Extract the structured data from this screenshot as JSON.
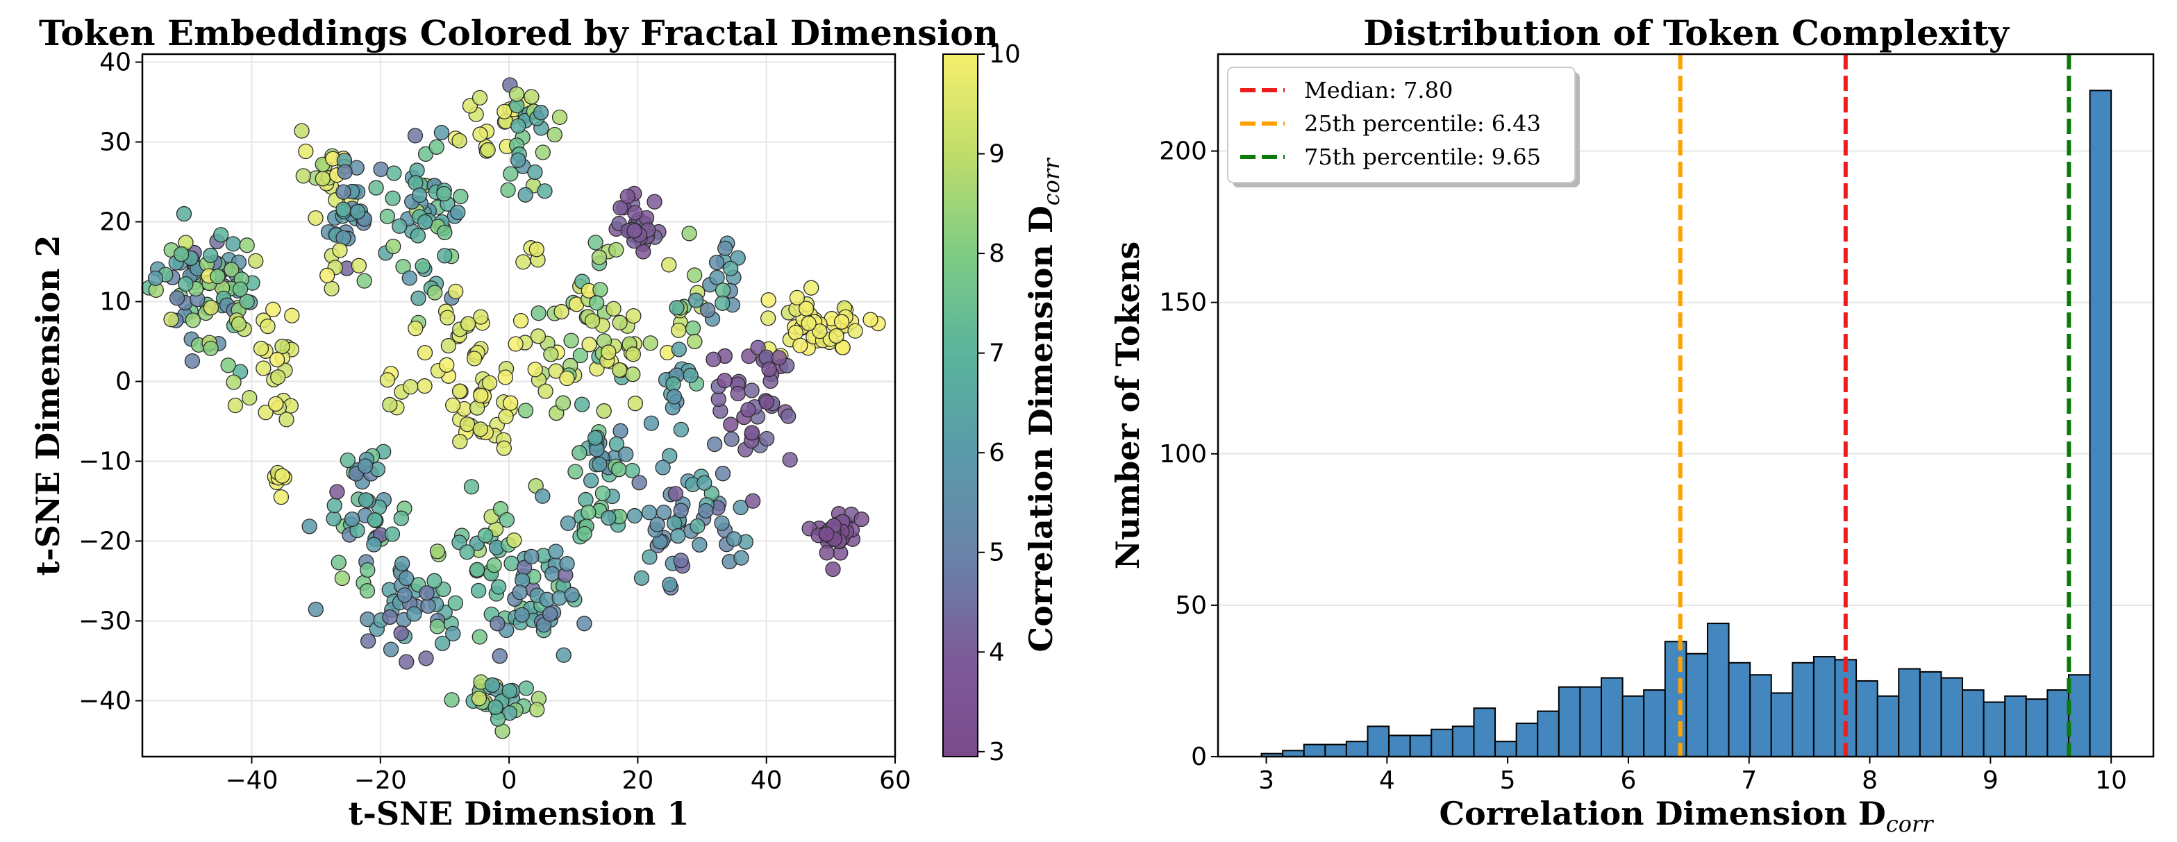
{
  "chart_data": [
    {
      "type": "scatter",
      "title": "Token Embeddings Colored by Fractal Dimension",
      "xlabel": "t-SNE Dimension 1",
      "ylabel": "t-SNE Dimension 2",
      "xlim": [
        -57,
        60
      ],
      "ylim": [
        -47,
        41
      ],
      "xticks": [
        -40,
        -20,
        0,
        20,
        40,
        60
      ],
      "yticks": [
        -40,
        -30,
        -20,
        -10,
        0,
        10,
        20,
        30,
        40
      ],
      "grid": true,
      "colormap": "viridis",
      "colorbar": {
        "label": "Correlation Dimension D",
        "label_subscript": "corr",
        "range": [
          2.95,
          10
        ],
        "ticks": [
          3,
          4,
          5,
          6,
          7,
          8,
          9,
          10
        ]
      },
      "clusters": [
        {
          "cx": -48,
          "cy": 12,
          "sx": 5,
          "sy": 4.5,
          "n": 70,
          "val": 6.5,
          "vs": 1.8
        },
        {
          "cx": -43,
          "cy": 8,
          "sx": 3,
          "sy": 6,
          "n": 20,
          "val": 8.5,
          "vs": 1.2
        },
        {
          "cx": -36,
          "cy": 2,
          "sx": 2.5,
          "sy": 6,
          "n": 22,
          "val": 9.6,
          "vs": 0.5
        },
        {
          "cx": -36,
          "cy": -12,
          "sx": 0.8,
          "sy": 1.5,
          "n": 7,
          "val": 9.8,
          "vs": 0.2
        },
        {
          "cx": -28,
          "cy": 26,
          "sx": 2.5,
          "sy": 3,
          "n": 18,
          "val": 9.3,
          "vs": 0.8
        },
        {
          "cx": -24,
          "cy": 21,
          "sx": 2.5,
          "sy": 4,
          "n": 28,
          "val": 5.8,
          "vs": 0.8
        },
        {
          "cx": -26,
          "cy": 14,
          "sx": 2,
          "sy": 2,
          "n": 6,
          "val": 9.4,
          "vs": 0.5
        },
        {
          "cx": -13,
          "cy": 20,
          "sx": 3.5,
          "sy": 6,
          "n": 55,
          "val": 6.8,
          "vs": 1.2
        },
        {
          "cx": -8,
          "cy": 7,
          "sx": 4,
          "sy": 7,
          "n": 25,
          "val": 9.6,
          "vs": 0.5
        },
        {
          "cx": -3,
          "cy": 31,
          "sx": 4,
          "sy": 3,
          "n": 18,
          "val": 9.5,
          "vs": 0.5
        },
        {
          "cx": 2,
          "cy": 30,
          "sx": 3,
          "sy": 5,
          "n": 26,
          "val": 7.3,
          "vs": 1.5
        },
        {
          "cx": 4,
          "cy": 17,
          "sx": 1,
          "sy": 1,
          "n": 4,
          "val": 9.6,
          "vs": 0.3
        },
        {
          "cx": -4,
          "cy": -3,
          "sx": 4,
          "sy": 3,
          "n": 28,
          "val": 9.6,
          "vs": 0.4
        },
        {
          "cx": 6,
          "cy": 3,
          "sx": 4,
          "sy": 5,
          "n": 22,
          "val": 9.2,
          "vs": 0.8
        },
        {
          "cx": 12,
          "cy": 8,
          "sx": 4,
          "sy": 8,
          "n": 32,
          "val": 8.3,
          "vs": 1.3
        },
        {
          "cx": 20,
          "cy": 19,
          "sx": 2,
          "sy": 3,
          "n": 30,
          "val": 3.8,
          "vs": 0.5
        },
        {
          "cx": 18,
          "cy": 5,
          "sx": 4,
          "sy": 3,
          "n": 16,
          "val": 9.2,
          "vs": 0.6
        },
        {
          "cx": 28,
          "cy": 10,
          "sx": 3,
          "sy": 5,
          "n": 14,
          "val": 8.8,
          "vs": 1.0
        },
        {
          "cx": 25,
          "cy": 0,
          "sx": 3,
          "sy": 4,
          "n": 16,
          "val": 6.2,
          "vs": 1.0
        },
        {
          "cx": 33,
          "cy": 13,
          "sx": 2,
          "sy": 3,
          "n": 16,
          "val": 6.0,
          "vs": 0.8
        },
        {
          "cx": 48,
          "cy": 7,
          "sx": 5,
          "sy": 2.5,
          "n": 48,
          "val": 9.8,
          "vs": 0.3
        },
        {
          "cx": 38,
          "cy": -2,
          "sx": 3.5,
          "sy": 4.5,
          "n": 40,
          "val": 3.9,
          "vs": 0.5
        },
        {
          "cx": 14,
          "cy": -9,
          "sx": 3,
          "sy": 3,
          "n": 24,
          "val": 6.3,
          "vs": 1.2
        },
        {
          "cx": 28,
          "cy": -17,
          "sx": 6,
          "sy": 5,
          "n": 50,
          "val": 5.6,
          "vs": 1.0
        },
        {
          "cx": 51,
          "cy": -19,
          "sx": 1.8,
          "sy": 1.8,
          "n": 36,
          "val": 3.4,
          "vs": 0.3
        },
        {
          "cx": -22,
          "cy": -17,
          "sx": 4,
          "sy": 6,
          "n": 42,
          "val": 6.4,
          "vs": 1.3
        },
        {
          "cx": -15,
          "cy": -29,
          "sx": 5,
          "sy": 3.5,
          "n": 40,
          "val": 6.2,
          "vs": 1.3
        },
        {
          "cx": -4,
          "cy": -22,
          "sx": 4,
          "sy": 4,
          "n": 30,
          "val": 7.6,
          "vs": 1.5
        },
        {
          "cx": 3,
          "cy": -28,
          "sx": 4,
          "sy": 4,
          "n": 28,
          "val": 6.0,
          "vs": 1.2
        },
        {
          "cx": -1,
          "cy": -40,
          "sx": 4,
          "sy": 2,
          "n": 28,
          "val": 7.5,
          "vs": 1.5
        },
        {
          "cx": 8,
          "cy": -24,
          "sx": 3,
          "sy": 5,
          "n": 18,
          "val": 6.0,
          "vs": 1.0
        },
        {
          "cx": 15,
          "cy": -18,
          "sx": 3,
          "sy": 3,
          "n": 12,
          "val": 7.0,
          "vs": 1.0
        },
        {
          "cx": -18,
          "cy": -3,
          "sx": 2,
          "sy": 3,
          "n": 6,
          "val": 9.3,
          "vs": 0.5
        }
      ]
    },
    {
      "type": "histogram",
      "title": "Distribution of Token Complexity",
      "xlabel": "Correlation Dimension D",
      "xlabel_subscript": "corr",
      "ylabel": "Number of Tokens",
      "xlim": [
        2.6,
        10.35
      ],
      "ylim": [
        0,
        232
      ],
      "xticks": [
        3,
        4,
        5,
        6,
        7,
        8,
        9,
        10
      ],
      "yticks": [
        0,
        50,
        100,
        150,
        200
      ],
      "grid": "y",
      "bar_color": "#4387be",
      "bin_start": 2.96,
      "bin_width": 0.176,
      "counts": [
        1,
        2,
        4,
        4,
        5,
        10,
        7,
        7,
        9,
        10,
        16,
        5,
        11,
        15,
        23,
        23,
        26,
        20,
        22,
        38,
        34,
        44,
        31,
        27,
        21,
        31,
        33,
        32,
        25,
        20,
        29,
        28,
        26,
        22,
        18,
        20,
        19,
        22,
        27,
        220
      ],
      "vlines": [
        {
          "label": "Median: 7.80",
          "x": 7.8,
          "color": "#ee1c1c"
        },
        {
          "label": "25th percentile: 6.43",
          "x": 6.43,
          "color": "#ffa200"
        },
        {
          "label": "75th percentile: 9.65",
          "x": 9.65,
          "color": "#0a7a0a"
        }
      ],
      "legend": "top-left"
    }
  ]
}
